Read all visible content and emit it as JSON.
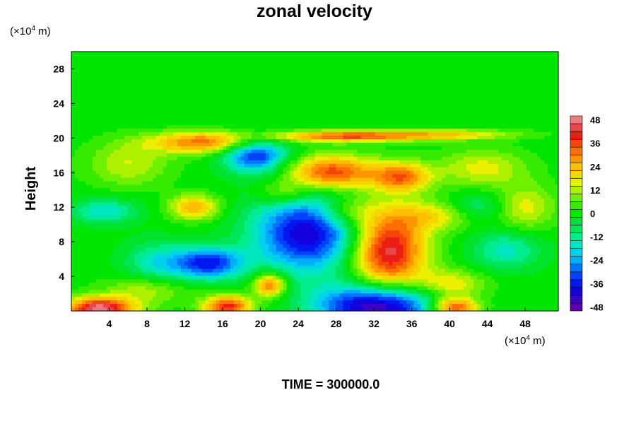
{
  "chart_data": {
    "type": "heatmap",
    "title": "zonal velocity",
    "ylabel": "Height",
    "xlabel": "",
    "x_unit": {
      "prefix": "(×10",
      "exp": "4",
      "suffix": " m)"
    },
    "y_unit": {
      "prefix": "(×10",
      "exp": "4",
      "suffix": " m)"
    },
    "xlim": [
      0,
      51.5
    ],
    "ylim": [
      0,
      30
    ],
    "x_ticks": [
      4,
      8,
      12,
      16,
      20,
      24,
      28,
      32,
      36,
      40,
      44,
      48
    ],
    "y_ticks": [
      4,
      8,
      12,
      16,
      20,
      24,
      28
    ],
    "colorbar": {
      "range": [
        -50,
        50
      ],
      "ticks": [
        48,
        36,
        24,
        12,
        0,
        -12,
        -24,
        -36,
        -48
      ],
      "step": 4,
      "placement": "right"
    },
    "features": [
      {
        "x": 25.0,
        "y": 9.0,
        "value": -42,
        "sx": 4.0,
        "sy": 3.2
      },
      {
        "x": 14.5,
        "y": 5.5,
        "value": -36,
        "sx": 2.6,
        "sy": 1.3
      },
      {
        "x": 19.5,
        "y": 18.0,
        "value": -36,
        "sx": 2.4,
        "sy": 1.4
      },
      {
        "x": 33.5,
        "y": 7.0,
        "value": 46,
        "sx": 2.8,
        "sy": 3.4
      },
      {
        "x": 27.5,
        "y": 16.0,
        "value": 38,
        "sx": 3.4,
        "sy": 1.4
      },
      {
        "x": 35.0,
        "y": 15.5,
        "value": 30,
        "sx": 2.2,
        "sy": 1.2
      },
      {
        "x": 14.0,
        "y": 19.5,
        "value": 32,
        "sx": 4.0,
        "sy": 0.9
      },
      {
        "x": 13.0,
        "y": 12.0,
        "value": 26,
        "sx": 1.8,
        "sy": 1.0
      },
      {
        "x": 21.0,
        "y": 3.0,
        "value": 34,
        "sx": 1.2,
        "sy": 1.0
      },
      {
        "x": 32.5,
        "y": 0.6,
        "value": -50,
        "sx": 4.5,
        "sy": 1.8
      },
      {
        "x": 3.0,
        "y": 0.3,
        "value": 48,
        "sx": 2.6,
        "sy": 0.9
      },
      {
        "x": 16.5,
        "y": 0.5,
        "value": 40,
        "sx": 1.8,
        "sy": 0.9
      },
      {
        "x": 40.5,
        "y": 0.4,
        "value": 40,
        "sx": 1.8,
        "sy": 0.8
      },
      {
        "x": 48.0,
        "y": 12.0,
        "value": 16,
        "sx": 2.2,
        "sy": 1.8
      },
      {
        "x": 6.0,
        "y": 17.0,
        "value": 14,
        "sx": 3.0,
        "sy": 1.8
      },
      {
        "x": 3.5,
        "y": 11.5,
        "value": -18,
        "sx": 2.4,
        "sy": 1.0
      },
      {
        "x": 46.0,
        "y": 7.0,
        "value": -16,
        "sx": 2.6,
        "sy": 1.6
      },
      {
        "x": 9.0,
        "y": 5.5,
        "value": -16,
        "sx": 2.4,
        "sy": 1.8
      },
      {
        "x": 40.0,
        "y": 3.0,
        "value": 20,
        "sx": 2.6,
        "sy": 1.2
      },
      {
        "x": 43.5,
        "y": 16.5,
        "value": 16,
        "sx": 3.2,
        "sy": 1.5
      },
      {
        "x": 29.0,
        "y": 20.2,
        "value": 34,
        "sx": 5.5,
        "sy": 0.45
      },
      {
        "x": 40.0,
        "y": 20.4,
        "value": 20,
        "sx": 5.0,
        "sy": 0.4
      },
      {
        "x": 8.0,
        "y": 2.5,
        "value": 14,
        "sx": 3.0,
        "sy": 1.2
      },
      {
        "x": 38.5,
        "y": 11.0,
        "value": 16,
        "sx": 3.0,
        "sy": 1.2
      },
      {
        "x": 29.0,
        "y": 11.5,
        "value": 16,
        "sx": 2.2,
        "sy": 1.2
      },
      {
        "x": 22.5,
        "y": 13.5,
        "value": 14,
        "sx": 2.0,
        "sy": 1.0
      },
      {
        "x": 43.0,
        "y": 12.0,
        "value": -12,
        "sx": 2.2,
        "sy": 1.2
      }
    ]
  },
  "footer": {
    "time_label": "TIME = 300000.0"
  }
}
